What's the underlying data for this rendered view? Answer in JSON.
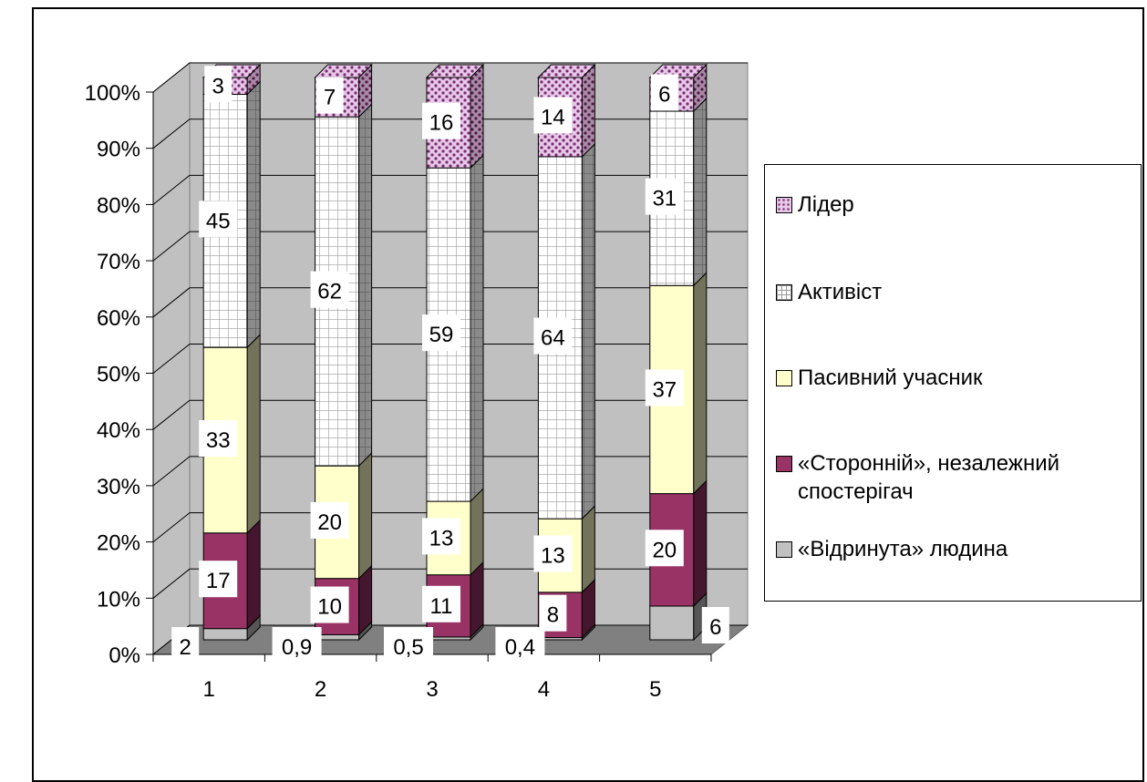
{
  "chart_data": {
    "type": "bar",
    "stacked": "percent",
    "three_d": true,
    "categories": [
      "1",
      "2",
      "3",
      "4",
      "5"
    ],
    "y_ticks": [
      "0%",
      "10%",
      "20%",
      "30%",
      "40%",
      "50%",
      "60%",
      "70%",
      "80%",
      "90%",
      "100%"
    ],
    "ylim": [
      0,
      100
    ],
    "grid": true,
    "legend_position": "right",
    "series": [
      {
        "name": "«Відринута» людина",
        "color": "#c0c0c0",
        "pattern": "solid",
        "values": [
          2,
          0.9,
          0.5,
          0.4,
          6
        ],
        "labels": [
          "2",
          "0,9",
          "0,5",
          "0,4",
          "6"
        ]
      },
      {
        "name": "«Сторонній», незалежний спостерігач",
        "color": "#993366",
        "pattern": "solid",
        "values": [
          17,
          10,
          11,
          8,
          20
        ],
        "labels": [
          "17",
          "10",
          "11",
          "8",
          "20"
        ]
      },
      {
        "name": "Пасивний учасник",
        "color": "#ffffcc",
        "pattern": "solid",
        "values": [
          33,
          20,
          13,
          13,
          37
        ],
        "labels": [
          "33",
          "20",
          "13",
          "13",
          "37"
        ]
      },
      {
        "name": "Активіст",
        "color": "#ffffff",
        "pattern": "grid",
        "values": [
          45,
          62,
          59,
          64,
          31
        ],
        "labels": [
          "45",
          "62",
          "59",
          "64",
          "31"
        ]
      },
      {
        "name": "Лідер",
        "color": "#e6c8e8",
        "pattern": "dots",
        "values": [
          3,
          7,
          16,
          14,
          6
        ],
        "labels": [
          "3",
          "7",
          "16",
          "14",
          "6"
        ]
      }
    ]
  },
  "legend": {
    "leader": "Лідер",
    "activist": "Активіст",
    "passive": "Пасивний учасник",
    "outsider_line1": "«Сторонній», незалежний",
    "outsider_line2": "спостерігач",
    "rejected": "«Відринута» людина"
  }
}
